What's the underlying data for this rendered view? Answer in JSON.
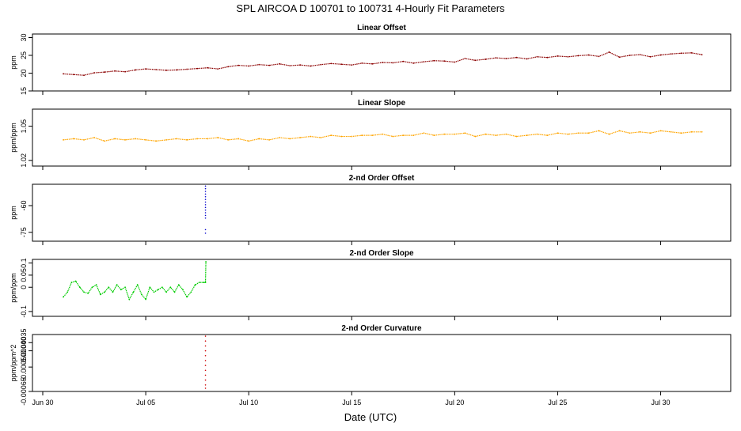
{
  "title": "SPL   AIRCOA D   100701 to 100731   4-Hourly Fit Parameters",
  "xlabel": "Date (UTC)",
  "x_ticks": [
    "Jun 30",
    "Jul 05",
    "Jul 10",
    "Jul 15",
    "Jul 20",
    "Jul 25",
    "Jul 30"
  ],
  "chart_data": [
    {
      "type": "line",
      "title": "Linear Offset",
      "ylabel": "ppm",
      "ylim": [
        15,
        31
      ],
      "yticks": [
        15,
        20,
        25,
        30
      ],
      "x_range": [
        -0.5,
        33.4
      ],
      "color": "#8b0000",
      "series": [
        {
          "x": [
            1,
            1.5,
            2,
            2.5,
            3,
            3.5,
            4,
            4.5,
            5,
            5.5,
            6,
            6.5,
            7,
            7.5,
            8,
            8.5,
            9,
            9.5,
            10,
            10.5,
            11,
            11.5,
            12,
            12.5,
            13,
            13.5,
            14,
            14.5,
            15,
            15.5,
            16,
            16.5,
            17,
            17.5,
            18,
            18.5,
            19,
            19.5,
            20,
            20.5,
            21,
            21.5,
            22,
            22.5,
            23,
            23.5,
            24,
            24.5,
            25,
            25.5,
            26,
            26.5,
            27,
            27.5,
            28,
            28.5,
            29,
            29.5,
            30,
            30.5,
            31,
            31.5,
            32
          ],
          "y": [
            19.8,
            19.6,
            19.4,
            20.1,
            20.3,
            20.6,
            20.4,
            20.9,
            21.2,
            21.0,
            20.8,
            20.9,
            21.1,
            21.3,
            21.5,
            21.2,
            21.8,
            22.2,
            22.0,
            22.4,
            22.2,
            22.6,
            22.1,
            22.3,
            22.0,
            22.4,
            22.7,
            22.5,
            22.3,
            22.8,
            22.6,
            23.0,
            22.9,
            23.3,
            22.8,
            23.2,
            23.5,
            23.4,
            23.1,
            24.1,
            23.6,
            23.9,
            24.3,
            24.1,
            24.4,
            24.0,
            24.6,
            24.4,
            24.8,
            24.6,
            24.9,
            25.1,
            24.7,
            25.9,
            24.5,
            25.0,
            25.2,
            24.6,
            25.1,
            25.4,
            25.6,
            25.7,
            25.2
          ]
        }
      ]
    },
    {
      "type": "line",
      "title": "Linear Slope",
      "ylabel": "ppm/ppm",
      "ylim": [
        1.015,
        1.065
      ],
      "yticks": [
        1.02,
        1.05
      ],
      "x_range": [
        -0.5,
        33.4
      ],
      "color": "#ffa500",
      "series": [
        {
          "x": [
            1,
            1.5,
            2,
            2.5,
            3,
            3.5,
            4,
            4.5,
            5,
            5.5,
            6,
            6.5,
            7,
            7.5,
            8,
            8.5,
            9,
            9.5,
            10,
            10.5,
            11,
            11.5,
            12,
            12.5,
            13,
            13.5,
            14,
            14.5,
            15,
            15.5,
            16,
            16.5,
            17,
            17.5,
            18,
            18.5,
            19,
            19.5,
            20,
            20.5,
            21,
            21.5,
            22,
            22.5,
            23,
            23.5,
            24,
            24.5,
            25,
            25.5,
            26,
            26.5,
            27,
            27.5,
            28,
            28.5,
            29,
            29.5,
            30,
            30.5,
            31,
            31.5,
            32
          ],
          "y": [
            1.038,
            1.039,
            1.038,
            1.04,
            1.037,
            1.039,
            1.038,
            1.039,
            1.038,
            1.037,
            1.038,
            1.039,
            1.038,
            1.039,
            1.039,
            1.04,
            1.038,
            1.039,
            1.037,
            1.039,
            1.038,
            1.04,
            1.039,
            1.04,
            1.041,
            1.04,
            1.042,
            1.041,
            1.041,
            1.042,
            1.042,
            1.043,
            1.041,
            1.042,
            1.042,
            1.044,
            1.042,
            1.043,
            1.043,
            1.044,
            1.041,
            1.043,
            1.042,
            1.043,
            1.041,
            1.042,
            1.043,
            1.042,
            1.044,
            1.043,
            1.044,
            1.044,
            1.046,
            1.043,
            1.046,
            1.044,
            1.045,
            1.044,
            1.046,
            1.045,
            1.044,
            1.045,
            1.045
          ]
        }
      ]
    },
    {
      "type": "scatter",
      "title": "2-nd Order Offset",
      "ylabel": "ppm",
      "ylim": [
        -80,
        -48
      ],
      "yticks": [
        -60,
        -75
      ],
      "x_range": [
        -0.5,
        33.4
      ],
      "color": "#0000cd",
      "series": [
        {
          "x": [
            7.9,
            7.9,
            7.9,
            7.9,
            7.9,
            7.9,
            7.9,
            7.9,
            7.9,
            7.9,
            7.9,
            7.9,
            7.9,
            7.9,
            7.9
          ],
          "y": [
            -49,
            -50.5,
            -52,
            -53.5,
            -55,
            -56.5,
            -58,
            -59.5,
            -61,
            -62.5,
            -64,
            -65.5,
            -67,
            -73.5,
            -75.5
          ]
        }
      ]
    },
    {
      "type": "line",
      "title": "2-nd Order Slope",
      "ylabel": "ppm/ppm",
      "ylim": [
        -0.12,
        0.115
      ],
      "yticks": [
        -0.1,
        0.0,
        0.05,
        0.1
      ],
      "x_range": [
        -0.5,
        33.4
      ],
      "color": "#00cc00",
      "series": [
        {
          "x": [
            1,
            1.2,
            1.4,
            1.6,
            1.8,
            2,
            2.2,
            2.4,
            2.6,
            2.8,
            3,
            3.2,
            3.4,
            3.6,
            3.8,
            4,
            4.2,
            4.4,
            4.6,
            4.8,
            5,
            5.2,
            5.4,
            5.6,
            5.8,
            6,
            6.2,
            6.4,
            6.6,
            6.8,
            7,
            7.2,
            7.4,
            7.6,
            7.8,
            7.9,
            7.92
          ],
          "y": [
            -0.04,
            -0.02,
            0.02,
            0.025,
            0.0,
            -0.02,
            -0.025,
            0.0,
            0.01,
            -0.03,
            -0.02,
            0.0,
            -0.02,
            0.01,
            -0.01,
            0.0,
            -0.05,
            -0.02,
            0.01,
            -0.03,
            -0.05,
            0.0,
            -0.02,
            -0.01,
            0.0,
            -0.02,
            0.0,
            -0.02,
            0.01,
            -0.01,
            -0.04,
            -0.02,
            0.01,
            0.02,
            0.02,
            0.02,
            0.105
          ]
        }
      ]
    },
    {
      "type": "scatter",
      "title": "2-nd Order Curvature",
      "ylabel": "ppm/ppm^2",
      "ylim": [
        -0.00065,
        -0.0003
      ],
      "yticks": [
        -0.00065,
        -0.0005,
        -0.0004,
        -0.00035
      ],
      "ytick_labels": [
        "-0.00065",
        "-0.00050",
        "-0.00040",
        "-0.00035"
      ],
      "x_range": [
        -0.5,
        33.4
      ],
      "color": "#cc0000",
      "series": [
        {
          "x": [
            7.9,
            7.9,
            7.9,
            7.9,
            7.9,
            7.9,
            7.9,
            7.9,
            7.9,
            7.9,
            7.9,
            7.9
          ],
          "y": [
            -0.00031,
            -0.00034,
            -0.00037,
            -0.0004,
            -0.00043,
            -0.00046,
            -0.00049,
            -0.00052,
            -0.00055,
            -0.00058,
            -0.00061,
            -0.00063
          ]
        }
      ]
    }
  ]
}
